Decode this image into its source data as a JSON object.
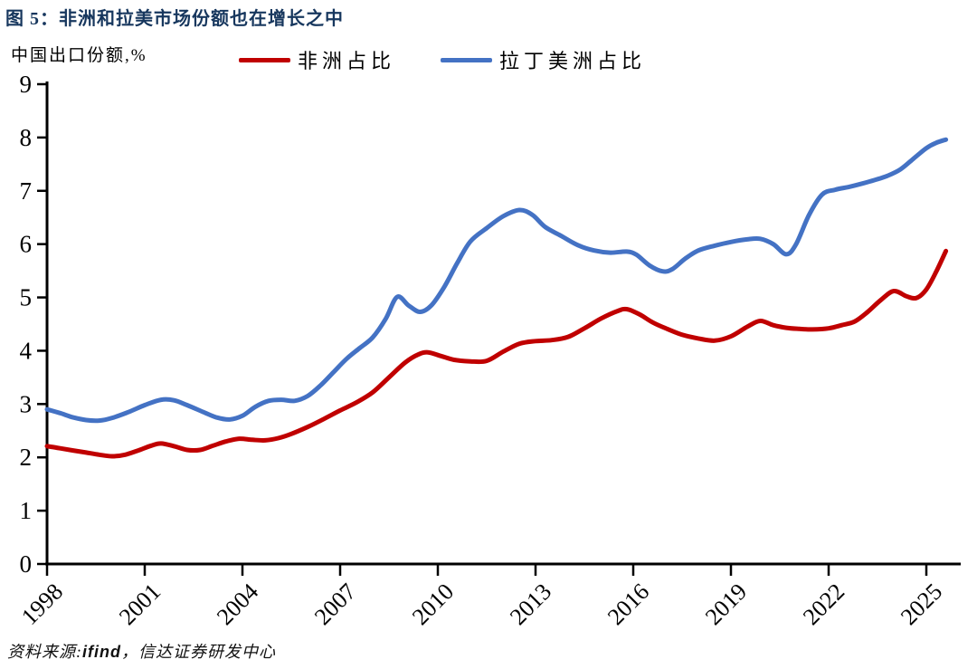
{
  "figure": {
    "source": {
      "prefix": "资料来源:",
      "brand": "ifind",
      "suffix": "，信达证券研发中心"
    }
  },
  "colors": {
    "title": "#17375E",
    "axis": "#000000",
    "africa_red": "#C00000",
    "latam_blue": "#4472C4"
  },
  "chart_data": {
    "type": "line",
    "title": "图 5：非洲和拉美市场份额也在增长之中",
    "unit_label": "中国出口份额,%",
    "xlabel": "",
    "ylabel": "中国出口份额,%",
    "grid": false,
    "legend_position": "top",
    "x_axis": {
      "min": 1998,
      "max": 2026,
      "tick_years": [
        1998,
        2001,
        2004,
        2007,
        2010,
        2013,
        2016,
        2019,
        2022,
        2025
      ],
      "tick_label_rotation_deg": -45
    },
    "y_axis": {
      "min": 0,
      "max": 9,
      "tick_step": 1,
      "tick_labels": [
        "0",
        "1",
        "2",
        "3",
        "4",
        "5",
        "6",
        "7",
        "8",
        "9"
      ]
    },
    "series": [
      {
        "id": "africa",
        "name": "非洲占比",
        "color": "#C00000",
        "points": [
          [
            1998.0,
            2.21
          ],
          [
            1998.4,
            2.17
          ],
          [
            1998.8,
            2.13
          ],
          [
            1999.2,
            2.09
          ],
          [
            1999.6,
            2.05
          ],
          [
            2000.0,
            2.02
          ],
          [
            2000.4,
            2.05
          ],
          [
            2000.8,
            2.13
          ],
          [
            2001.2,
            2.22
          ],
          [
            2001.5,
            2.26
          ],
          [
            2001.9,
            2.21
          ],
          [
            2002.3,
            2.14
          ],
          [
            2002.7,
            2.14
          ],
          [
            2003.1,
            2.22
          ],
          [
            2003.5,
            2.3
          ],
          [
            2003.9,
            2.35
          ],
          [
            2004.3,
            2.33
          ],
          [
            2004.7,
            2.32
          ],
          [
            2005.1,
            2.36
          ],
          [
            2005.5,
            2.44
          ],
          [
            2006.0,
            2.57
          ],
          [
            2006.5,
            2.72
          ],
          [
            2007.0,
            2.88
          ],
          [
            2007.5,
            3.03
          ],
          [
            2008.0,
            3.22
          ],
          [
            2008.5,
            3.5
          ],
          [
            2009.0,
            3.78
          ],
          [
            2009.4,
            3.93
          ],
          [
            2009.7,
            3.97
          ],
          [
            2010.1,
            3.9
          ],
          [
            2010.5,
            3.83
          ],
          [
            2011.0,
            3.8
          ],
          [
            2011.5,
            3.81
          ],
          [
            2012.0,
            3.98
          ],
          [
            2012.5,
            4.13
          ],
          [
            2013.0,
            4.18
          ],
          [
            2013.5,
            4.2
          ],
          [
            2014.0,
            4.26
          ],
          [
            2014.5,
            4.42
          ],
          [
            2015.0,
            4.6
          ],
          [
            2015.5,
            4.74
          ],
          [
            2015.8,
            4.78
          ],
          [
            2016.2,
            4.68
          ],
          [
            2016.6,
            4.53
          ],
          [
            2017.0,
            4.42
          ],
          [
            2017.5,
            4.3
          ],
          [
            2018.0,
            4.23
          ],
          [
            2018.5,
            4.19
          ],
          [
            2019.0,
            4.27
          ],
          [
            2019.5,
            4.45
          ],
          [
            2019.9,
            4.56
          ],
          [
            2020.3,
            4.48
          ],
          [
            2020.7,
            4.43
          ],
          [
            2021.1,
            4.41
          ],
          [
            2021.5,
            4.4
          ],
          [
            2022.0,
            4.42
          ],
          [
            2022.4,
            4.48
          ],
          [
            2022.8,
            4.55
          ],
          [
            2023.2,
            4.73
          ],
          [
            2023.6,
            4.95
          ],
          [
            2024.0,
            5.12
          ],
          [
            2024.4,
            5.02
          ],
          [
            2024.7,
            4.99
          ],
          [
            2025.0,
            5.15
          ],
          [
            2025.3,
            5.48
          ],
          [
            2025.6,
            5.87
          ]
        ]
      },
      {
        "id": "latam",
        "name": "拉丁美洲占比",
        "color": "#4472C4",
        "points": [
          [
            1998.0,
            2.9
          ],
          [
            1998.4,
            2.83
          ],
          [
            1998.8,
            2.75
          ],
          [
            1999.2,
            2.7
          ],
          [
            1999.6,
            2.69
          ],
          [
            2000.0,
            2.74
          ],
          [
            2000.5,
            2.85
          ],
          [
            2001.0,
            2.98
          ],
          [
            2001.5,
            3.08
          ],
          [
            2001.9,
            3.07
          ],
          [
            2002.3,
            2.98
          ],
          [
            2002.8,
            2.85
          ],
          [
            2003.2,
            2.75
          ],
          [
            2003.6,
            2.71
          ],
          [
            2004.0,
            2.78
          ],
          [
            2004.4,
            2.95
          ],
          [
            2004.8,
            3.06
          ],
          [
            2005.2,
            3.08
          ],
          [
            2005.6,
            3.06
          ],
          [
            2006.0,
            3.15
          ],
          [
            2006.4,
            3.35
          ],
          [
            2006.8,
            3.6
          ],
          [
            2007.2,
            3.85
          ],
          [
            2007.6,
            4.05
          ],
          [
            2008.0,
            4.25
          ],
          [
            2008.4,
            4.6
          ],
          [
            2008.75,
            5.01
          ],
          [
            2009.1,
            4.85
          ],
          [
            2009.45,
            4.73
          ],
          [
            2009.8,
            4.85
          ],
          [
            2010.2,
            5.2
          ],
          [
            2010.6,
            5.65
          ],
          [
            2011.0,
            6.05
          ],
          [
            2011.5,
            6.3
          ],
          [
            2012.0,
            6.52
          ],
          [
            2012.5,
            6.64
          ],
          [
            2012.9,
            6.55
          ],
          [
            2013.3,
            6.32
          ],
          [
            2013.8,
            6.15
          ],
          [
            2014.3,
            5.98
          ],
          [
            2014.8,
            5.88
          ],
          [
            2015.3,
            5.84
          ],
          [
            2015.8,
            5.86
          ],
          [
            2016.1,
            5.8
          ],
          [
            2016.5,
            5.6
          ],
          [
            2016.9,
            5.49
          ],
          [
            2017.2,
            5.53
          ],
          [
            2017.6,
            5.73
          ],
          [
            2018.0,
            5.88
          ],
          [
            2018.5,
            5.97
          ],
          [
            2019.0,
            6.04
          ],
          [
            2019.5,
            6.09
          ],
          [
            2019.9,
            6.1
          ],
          [
            2020.3,
            6.0
          ],
          [
            2020.7,
            5.81
          ],
          [
            2021.0,
            6.0
          ],
          [
            2021.4,
            6.55
          ],
          [
            2021.8,
            6.93
          ],
          [
            2022.2,
            7.02
          ],
          [
            2022.6,
            7.07
          ],
          [
            2023.0,
            7.13
          ],
          [
            2023.4,
            7.2
          ],
          [
            2023.8,
            7.28
          ],
          [
            2024.2,
            7.4
          ],
          [
            2024.6,
            7.6
          ],
          [
            2025.0,
            7.8
          ],
          [
            2025.3,
            7.9
          ],
          [
            2025.6,
            7.96
          ]
        ]
      }
    ]
  }
}
